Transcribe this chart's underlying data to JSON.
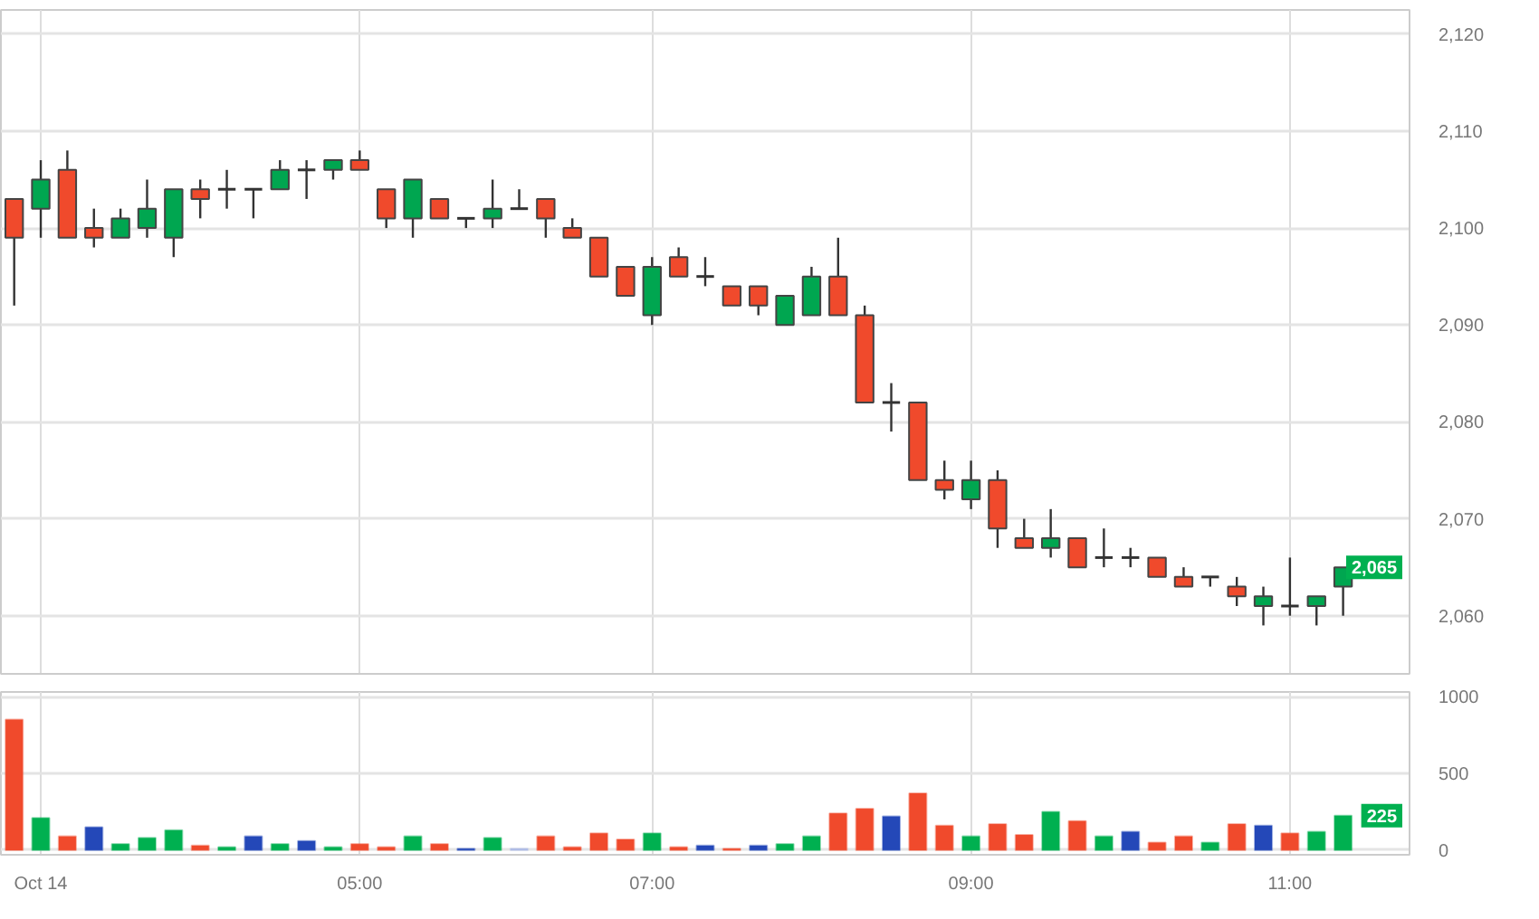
{
  "chart_data": [
    {
      "type": "candlestick",
      "categories": [
        null,
        null,
        null,
        null,
        null,
        null,
        null,
        null,
        null,
        null,
        null,
        null,
        null,
        null,
        null,
        null,
        null,
        null,
        null,
        null,
        null,
        null,
        null,
        null,
        null,
        null,
        null,
        null,
        null,
        null,
        null,
        null,
        null,
        null,
        null,
        null,
        null,
        null,
        null,
        null,
        null,
        null,
        null,
        null,
        null,
        null,
        null,
        null,
        null,
        null,
        null
      ],
      "ohlc": [
        [
          2103,
          2103,
          2092,
          2099
        ],
        [
          2102,
          2107,
          2099,
          2105
        ],
        [
          2106,
          2108,
          2099,
          2099
        ],
        [
          2100,
          2102,
          2098,
          2099
        ],
        [
          2099,
          2102,
          2099,
          2101
        ],
        [
          2100,
          2105,
          2099,
          2102
        ],
        [
          2099,
          2104,
          2097,
          2104
        ],
        [
          2104,
          2105,
          2101,
          2103
        ],
        [
          2104,
          2106,
          2102,
          2104
        ],
        [
          2104,
          2104,
          2101,
          2104
        ],
        [
          2104,
          2107,
          2104,
          2106
        ],
        [
          2106,
          2107,
          2103,
          2106
        ],
        [
          2106,
          2107,
          2105,
          2107
        ],
        [
          2107,
          2108,
          2106,
          2106
        ],
        [
          2104,
          2104,
          2100,
          2101
        ],
        [
          2101,
          2105,
          2099,
          2105
        ],
        [
          2103,
          2103,
          2101,
          2101
        ],
        [
          2101,
          2101,
          2100,
          2101
        ],
        [
          2101,
          2105,
          2100,
          2102
        ],
        [
          2102,
          2104,
          2102,
          2102
        ],
        [
          2103,
          2103,
          2099,
          2101
        ],
        [
          2100,
          2101,
          2099,
          2099
        ],
        [
          2099,
          2099,
          2095,
          2095
        ],
        [
          2096,
          2096,
          2093,
          2093
        ],
        [
          2091,
          2097,
          2090,
          2096
        ],
        [
          2097,
          2098,
          2095,
          2095
        ],
        [
          2095,
          2097,
          2094,
          2095
        ],
        [
          2094,
          2094,
          2092,
          2092
        ],
        [
          2094,
          2094,
          2091,
          2092
        ],
        [
          2090,
          2093,
          2090,
          2093
        ],
        [
          2091,
          2096,
          2091,
          2095
        ],
        [
          2095,
          2099,
          2091,
          2091
        ],
        [
          2091,
          2092,
          2082,
          2082
        ],
        [
          2082,
          2084,
          2079,
          2082
        ],
        [
          2082,
          2082,
          2074,
          2074
        ],
        [
          2074,
          2076,
          2072,
          2073
        ],
        [
          2072,
          2076,
          2071,
          2074
        ],
        [
          2074,
          2075,
          2067,
          2069
        ],
        [
          2068,
          2070,
          2067,
          2067
        ],
        [
          2067,
          2071,
          2066,
          2068
        ],
        [
          2068,
          2068,
          2065,
          2065
        ],
        [
          2066,
          2069,
          2065,
          2066
        ],
        [
          2066,
          2067,
          2065,
          2066
        ],
        [
          2066,
          2066,
          2064,
          2064
        ],
        [
          2064,
          2065,
          2063,
          2063
        ],
        [
          2064,
          2064,
          2063,
          2064
        ],
        [
          2063,
          2064,
          2061,
          2062
        ],
        [
          2061,
          2063,
          2059,
          2062
        ],
        [
          2061,
          2066,
          2060,
          2061
        ],
        [
          2061,
          2062,
          2059,
          2062
        ],
        [
          2063,
          2065,
          2060,
          2065
        ]
      ],
      "colors": [
        "#f04a2c",
        "#00a650",
        "#f04a2c",
        "#f04a2c",
        "#00a650",
        "#00a650",
        "#00a650",
        "#f04a2c",
        "#333333",
        "#333333",
        "#00a650",
        "#333333",
        "#00a650",
        "#f04a2c",
        "#f04a2c",
        "#00a650",
        "#f04a2c",
        "#333333",
        "#00a650",
        "#333333",
        "#f04a2c",
        "#f04a2c",
        "#f04a2c",
        "#f04a2c",
        "#00a650",
        "#f04a2c",
        "#333333",
        "#f04a2c",
        "#f04a2c",
        "#00a650",
        "#00a650",
        "#f04a2c",
        "#f04a2c",
        "#333333",
        "#f04a2c",
        "#f04a2c",
        "#00a650",
        "#f04a2c",
        "#f04a2c",
        "#00a650",
        "#f04a2c",
        "#333333",
        "#333333",
        "#f04a2c",
        "#f04a2c",
        "#333333",
        "#f04a2c",
        "#00a650",
        "#333333",
        "#00a650",
        "#00a650"
      ],
      "ylim": [
        2054,
        2122.5
      ],
      "yticks": [
        {
          "value": 2060,
          "label": "2,060"
        },
        {
          "value": 2070,
          "label": "2,070"
        },
        {
          "value": 2080,
          "label": "2,080"
        },
        {
          "value": 2090,
          "label": "2,090"
        },
        {
          "value": 2100,
          "label": "2,100"
        },
        {
          "value": 2110,
          "label": "2,110"
        },
        {
          "value": 2120,
          "label": "2,120"
        }
      ],
      "annotations": [
        {
          "text": "2,065",
          "y": 2065
        }
      ],
      "grid": true,
      "tick_labels": "y"
    },
    {
      "type": "bar",
      "categories": [
        null,
        "Oct 14",
        null,
        null,
        null,
        null,
        null,
        null,
        null,
        null,
        null,
        null,
        null,
        "05:00",
        null,
        null,
        null,
        null,
        null,
        null,
        null,
        null,
        null,
        null,
        "07:00",
        null,
        null,
        null,
        null,
        null,
        null,
        null,
        null,
        null,
        null,
        null,
        "09:00",
        null,
        null,
        null,
        null,
        null,
        null,
        null,
        null,
        null,
        null,
        null,
        "11:00",
        null,
        null
      ],
      "values": [
        850,
        210,
        90,
        150,
        40,
        80,
        130,
        30,
        20,
        90,
        40,
        60,
        20,
        40,
        20,
        90,
        40,
        10,
        80,
        10,
        90,
        20,
        110,
        70,
        110,
        20,
        30,
        10,
        30,
        40,
        90,
        240,
        270,
        220,
        370,
        160,
        90,
        170,
        100,
        250,
        190,
        90,
        120,
        50,
        90,
        50,
        170,
        160,
        110,
        120,
        225
      ],
      "colors": [
        "#f04a2c",
        "#00b050",
        "#f04a2c",
        "#2448b8",
        "#00b050",
        "#00b050",
        "#00b050",
        "#f04a2c",
        "#00b050",
        "#2448b8",
        "#00b050",
        "#2448b8",
        "#00b050",
        "#f04a2c",
        "#f04a2c",
        "#00b050",
        "#f04a2c",
        "#2448b8",
        "#00b050",
        "#aab8e6",
        "#f04a2c",
        "#f04a2c",
        "#f04a2c",
        "#f04a2c",
        "#00b050",
        "#f04a2c",
        "#2448b8",
        "#f04a2c",
        "#2448b8",
        "#00b050",
        "#00b050",
        "#f04a2c",
        "#f04a2c",
        "#2448b8",
        "#f04a2c",
        "#f04a2c",
        "#00b050",
        "#f04a2c",
        "#f04a2c",
        "#00b050",
        "#f04a2c",
        "#00b050",
        "#2448b8",
        "#f04a2c",
        "#f04a2c",
        "#00b050",
        "#f04a2c",
        "#2448b8",
        "#f04a2c",
        "#00b050",
        "#00b050"
      ],
      "ylim": [
        -30,
        1030
      ],
      "yticks": [
        0,
        500,
        1000
      ],
      "annotations": [
        {
          "text": "225",
          "y": 225
        }
      ],
      "grid": true
    }
  ]
}
